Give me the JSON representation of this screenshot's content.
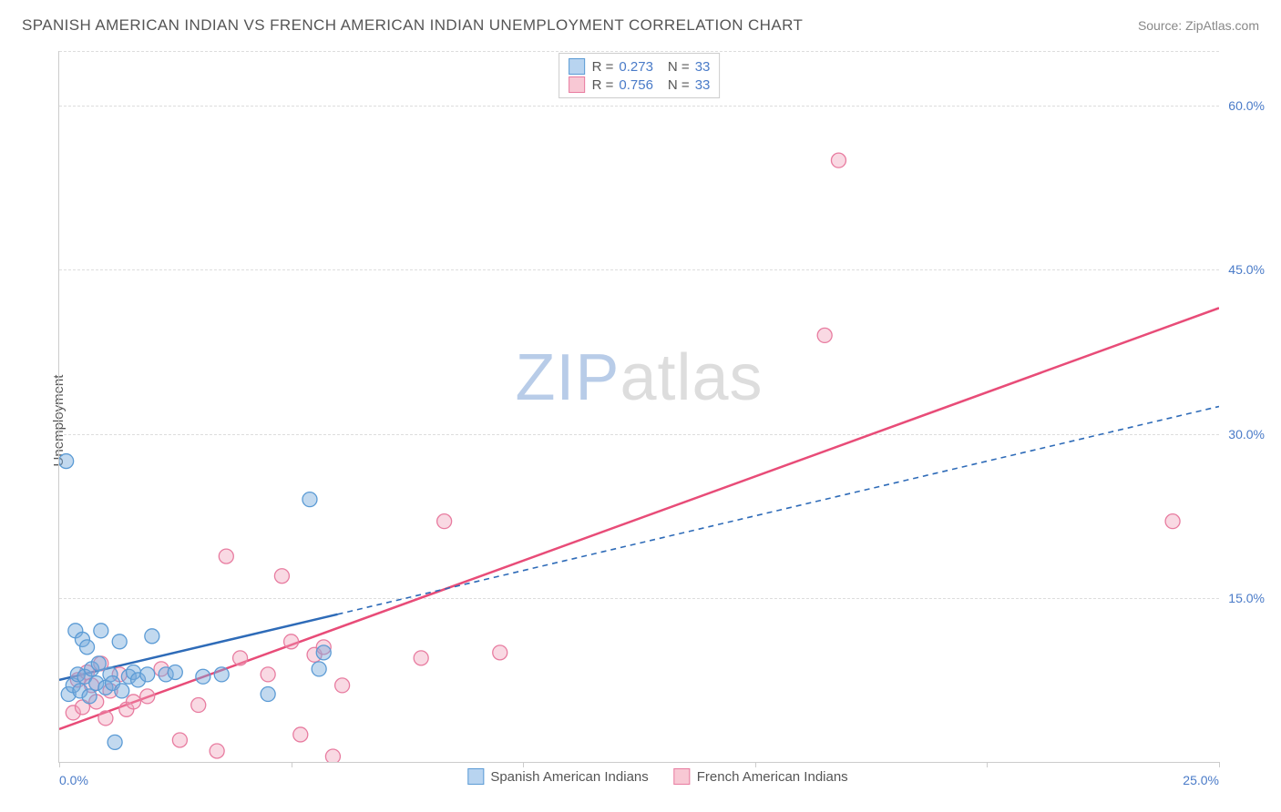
{
  "header": {
    "title": "SPANISH AMERICAN INDIAN VS FRENCH AMERICAN INDIAN UNEMPLOYMENT CORRELATION CHART",
    "source": "Source: ZipAtlas.com"
  },
  "chart": {
    "type": "scatter",
    "ylabel": "Unemployment",
    "background_color": "#ffffff",
    "grid_color": "#dddddd",
    "axis_color": "#cccccc",
    "tick_label_color": "#4a7bc8",
    "label_fontsize": 15,
    "tick_fontsize": 14,
    "xlim": [
      0,
      25
    ],
    "ylim": [
      0,
      65
    ],
    "xticks": [
      0,
      5,
      10,
      15,
      20,
      25
    ],
    "xtick_labels": [
      "0.0%",
      "",
      "",
      "",
      "",
      "25.0%"
    ],
    "yticks": [
      15,
      30,
      45,
      60,
      65
    ],
    "ytick_labels": [
      "15.0%",
      "30.0%",
      "45.0%",
      "60.0%",
      ""
    ],
    "watermark": {
      "z": "Z",
      "ip": "IP",
      "atlas": "atlas"
    }
  },
  "legend_top": {
    "rows": [
      {
        "swatch_fill": "#b8d4f0",
        "swatch_border": "#5b9bd5",
        "r_label": "R =",
        "r_value": "0.273",
        "n_label": "N =",
        "n_value": "33"
      },
      {
        "swatch_fill": "#f8c8d4",
        "swatch_border": "#e87ca0",
        "r_label": "R =",
        "r_value": "0.756",
        "n_label": "N =",
        "n_value": "33"
      }
    ]
  },
  "legend_bottom": {
    "items": [
      {
        "swatch_fill": "#b8d4f0",
        "swatch_border": "#5b9bd5",
        "label": "Spanish American Indians"
      },
      {
        "swatch_fill": "#f8c8d4",
        "swatch_border": "#e87ca0",
        "label": "French American Indians"
      }
    ]
  },
  "series": {
    "spanish": {
      "marker_fill": "rgba(120,170,220,0.45)",
      "marker_stroke": "#5b9bd5",
      "marker_radius": 8,
      "line_color": "#2e6bb8",
      "line_width": 2.5,
      "line_dash_ext": "6,5",
      "points": [
        [
          0.15,
          27.5
        ],
        [
          0.2,
          6.2
        ],
        [
          0.3,
          7.0
        ],
        [
          0.35,
          12.0
        ],
        [
          0.4,
          8.0
        ],
        [
          0.45,
          6.5
        ],
        [
          0.5,
          11.2
        ],
        [
          0.55,
          7.8
        ],
        [
          0.6,
          10.5
        ],
        [
          0.65,
          6.0
        ],
        [
          0.7,
          8.5
        ],
        [
          0.8,
          7.2
        ],
        [
          0.85,
          9.0
        ],
        [
          0.9,
          12.0
        ],
        [
          1.0,
          6.8
        ],
        [
          1.1,
          8.0
        ],
        [
          1.15,
          7.2
        ],
        [
          1.2,
          1.8
        ],
        [
          1.3,
          11.0
        ],
        [
          1.35,
          6.5
        ],
        [
          1.5,
          7.8
        ],
        [
          1.6,
          8.2
        ],
        [
          1.7,
          7.5
        ],
        [
          1.9,
          8.0
        ],
        [
          2.0,
          11.5
        ],
        [
          2.3,
          8.0
        ],
        [
          2.5,
          8.2
        ],
        [
          3.1,
          7.8
        ],
        [
          3.5,
          8.0
        ],
        [
          4.5,
          6.2
        ],
        [
          5.4,
          24.0
        ],
        [
          5.6,
          8.5
        ],
        [
          5.7,
          10.0
        ]
      ],
      "regression": {
        "x1": 0,
        "y1": 7.5,
        "x2": 6.0,
        "y2": 13.5,
        "ext_x2": 25,
        "ext_y2": 32.5
      }
    },
    "french": {
      "marker_fill": "rgba(240,160,185,0.4)",
      "marker_stroke": "#e87ca0",
      "marker_radius": 8,
      "line_color": "#e84c78",
      "line_width": 2.5,
      "points": [
        [
          0.3,
          4.5
        ],
        [
          0.4,
          7.5
        ],
        [
          0.5,
          5.0
        ],
        [
          0.6,
          8.2
        ],
        [
          0.7,
          7.0
        ],
        [
          0.8,
          5.5
        ],
        [
          0.9,
          9.0
        ],
        [
          1.0,
          4.0
        ],
        [
          1.1,
          6.5
        ],
        [
          1.3,
          8.0
        ],
        [
          1.45,
          4.8
        ],
        [
          1.6,
          5.5
        ],
        [
          1.9,
          6.0
        ],
        [
          2.2,
          8.5
        ],
        [
          2.6,
          2.0
        ],
        [
          3.0,
          5.2
        ],
        [
          3.4,
          1.0
        ],
        [
          3.6,
          18.8
        ],
        [
          3.9,
          9.5
        ],
        [
          4.5,
          8.0
        ],
        [
          4.8,
          17.0
        ],
        [
          5.0,
          11.0
        ],
        [
          5.2,
          2.5
        ],
        [
          5.5,
          9.8
        ],
        [
          5.7,
          10.5
        ],
        [
          5.9,
          0.5
        ],
        [
          6.1,
          7.0
        ],
        [
          7.8,
          9.5
        ],
        [
          8.3,
          22.0
        ],
        [
          9.5,
          10.0
        ],
        [
          16.5,
          39.0
        ],
        [
          16.8,
          55.0
        ],
        [
          24.0,
          22.0
        ]
      ],
      "regression": {
        "x1": 0,
        "y1": 3.0,
        "x2": 25,
        "y2": 41.5
      }
    }
  }
}
